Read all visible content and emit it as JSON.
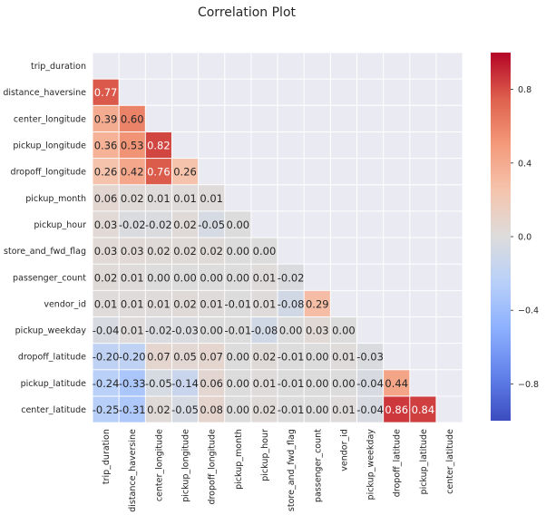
{
  "chart_data": {
    "type": "heatmap",
    "title": "Correlation Plot",
    "variables": [
      "trip_duration",
      "distance_haversine",
      "center_longitude",
      "pickup_longitude",
      "dropoff_longitude",
      "pickup_month",
      "pickup_hour",
      "store_and_fwd_flag",
      "passenger_count",
      "vendor_id",
      "pickup_weekday",
      "dropoff_latitude",
      "pickup_latitude",
      "center_latitude"
    ],
    "mask": "upper-triangle-including-diagonal",
    "lower_triangle_values": [
      [],
      [
        0.77
      ],
      [
        0.39,
        0.6
      ],
      [
        0.36,
        0.53,
        0.82
      ],
      [
        0.26,
        0.42,
        0.76,
        0.26
      ],
      [
        0.06,
        0.02,
        0.01,
        0.01,
        0.01
      ],
      [
        0.03,
        -0.02,
        -0.02,
        0.02,
        -0.05,
        -0.0
      ],
      [
        0.03,
        0.03,
        0.02,
        0.02,
        0.02,
        0.0,
        0.0
      ],
      [
        0.02,
        0.01,
        0.0,
        0.0,
        0.0,
        -0.0,
        0.01,
        -0.02
      ],
      [
        0.01,
        0.01,
        0.01,
        0.02,
        0.01,
        -0.01,
        0.01,
        -0.08,
        0.29
      ],
      [
        -0.04,
        0.01,
        -0.02,
        -0.03,
        -0.0,
        -0.01,
        -0.08,
        -0.0,
        0.03,
        0.0
      ],
      [
        -0.2,
        -0.2,
        0.07,
        0.05,
        0.07,
        -0.0,
        0.02,
        -0.01,
        -0.0,
        0.01,
        -0.03
      ],
      [
        -0.24,
        -0.33,
        -0.05,
        -0.14,
        0.06,
        -0.0,
        0.01,
        -0.01,
        -0.0,
        0.0,
        -0.04,
        0.44
      ],
      [
        -0.25,
        -0.31,
        0.02,
        -0.05,
        0.08,
        -0.0,
        0.02,
        -0.01,
        -0.0,
        0.01,
        -0.04,
        0.86,
        0.84
      ]
    ],
    "vmin": -1,
    "vmax": 1,
    "colormap": "coolwarm",
    "colorbar_ticks": [
      0.8,
      0.4,
      0.0,
      -0.4,
      -0.8
    ],
    "annotations_format": "0.00",
    "grid": true
  },
  "colors": {
    "panel_bg": "#eaeaf2",
    "grid_line": "#ffffff",
    "text": "#262626",
    "title": "#262626",
    "cool_low": "#3b4cc0",
    "neutral": "#dddcdc",
    "warm_high": "#b40426"
  }
}
